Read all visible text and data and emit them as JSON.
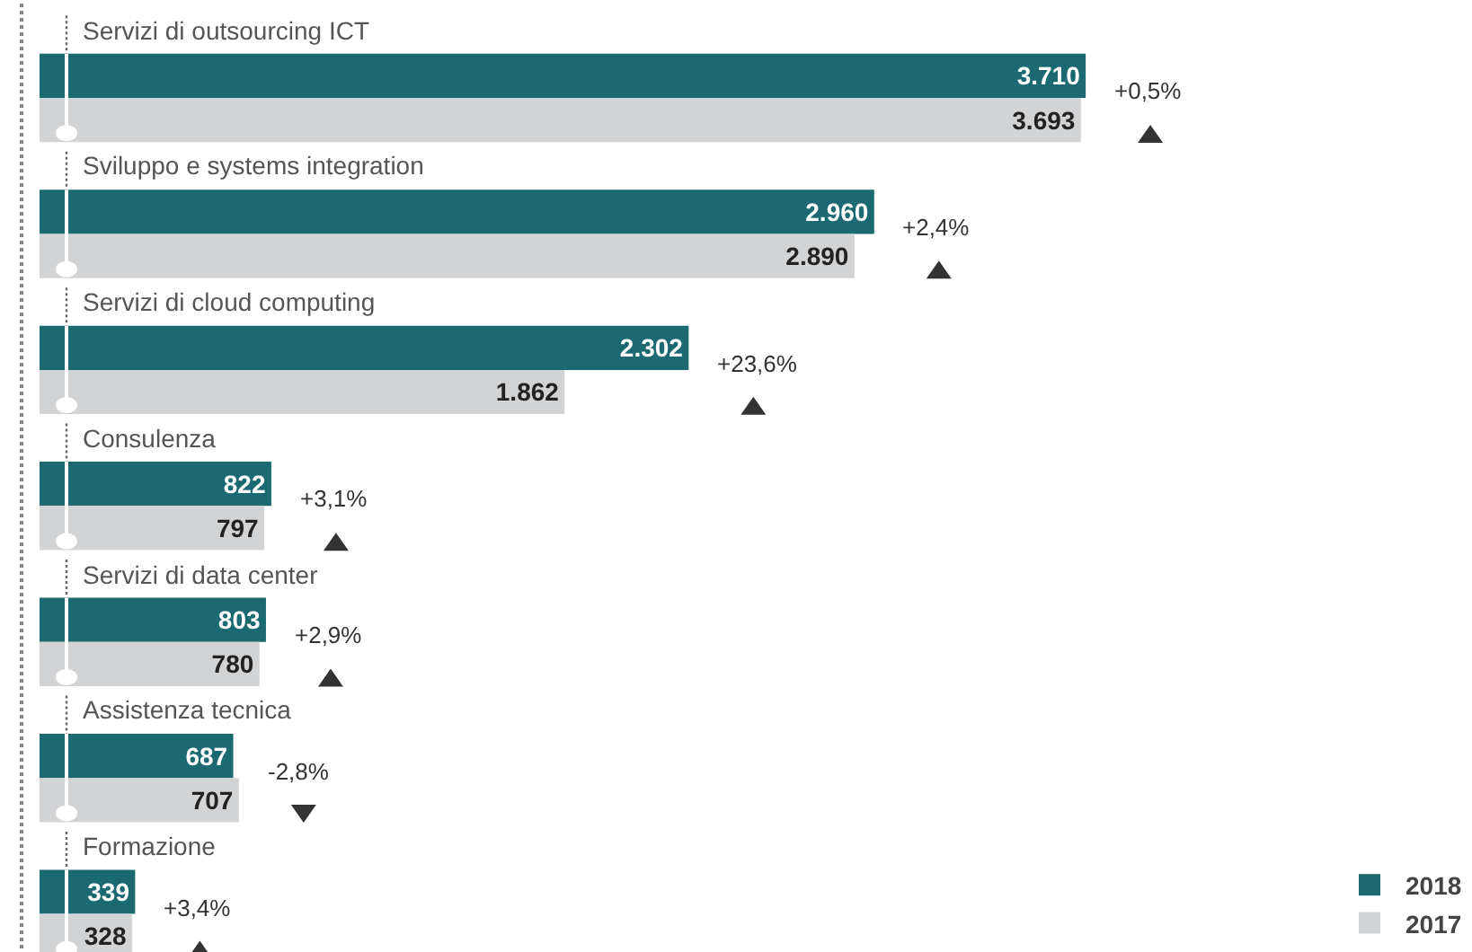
{
  "chart_data": {
    "type": "bar",
    "orientation": "horizontal",
    "categories": [
      "Servizi di outsourcing ICT",
      "Sviluppo e systems integration",
      "Servizi di cloud computing",
      "Consulenza",
      "Servizi di data center",
      "Assistenza tecnica",
      "Formazione"
    ],
    "series": [
      {
        "name": "2018",
        "color": "#1b6a72",
        "values": [
          3710,
          2960,
          2302,
          822,
          803,
          687,
          339
        ],
        "value_labels": [
          "3.710",
          "2.960",
          "2.302",
          "822",
          "803",
          "687",
          "339"
        ]
      },
      {
        "name": "2017",
        "color": "#d2d3d5",
        "values": [
          3693,
          2890,
          1862,
          797,
          780,
          707,
          328
        ],
        "value_labels": [
          "3.693",
          "2.890",
          "1.862",
          "797",
          "780",
          "707",
          "328"
        ]
      }
    ],
    "xlim": [
      0,
      5080
    ],
    "annotations": [
      "+0,5%",
      "+2,4%",
      "+23,6%",
      "+3,1%",
      "+2,9%",
      "-2,8%",
      "+3,4%"
    ],
    "legend": "bottom right",
    "grid": false,
    "tick_labels": false
  }
}
